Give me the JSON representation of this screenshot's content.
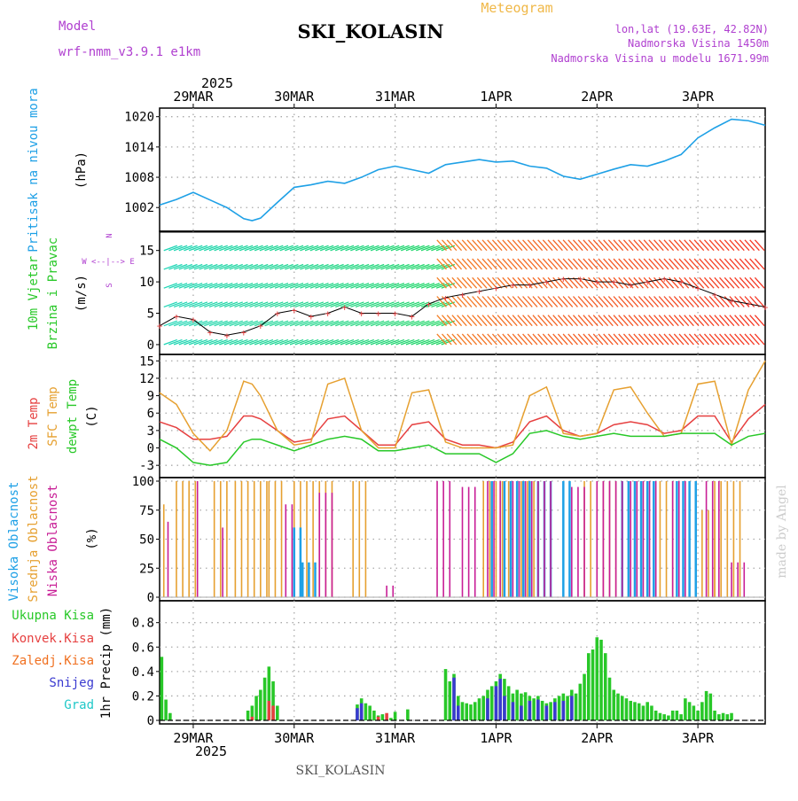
{
  "header": {
    "model_label": "Model",
    "model_name": "wrf-nmm_v3.9.1 e1km",
    "title": "SKI_KOLASIN",
    "meteogram_label": "Meteogram",
    "coords": "lon,lat (19.63E, 42.82N)",
    "elevation": "Nadmorska Visina 1450m",
    "model_elevation": "Nadmorska Visina u modelu 1671.99m",
    "footer_station": "SKI_KOLASIN",
    "credit": "made by Angel"
  },
  "time_axis": {
    "year": "2025",
    "dates": [
      "29MAR",
      "30MAR",
      "31MAR",
      "1APR",
      "2APR",
      "3APR"
    ],
    "hours_start": -8,
    "hours_end": 136
  },
  "colors": {
    "pressure": "#1ea0e6",
    "temp2m": "#e64040",
    "sfc_temp": "#e6a030",
    "dewpt": "#28c828",
    "high_cloud": "#1ea0e6",
    "mid_cloud": "#e6a030",
    "low_cloud": "#c81e96",
    "total_precip": "#28c828",
    "conv_precip": "#e64040",
    "frz_precip": "#f07020",
    "snow": "#3a3ad0",
    "graupel": "#20c8c8"
  },
  "panel_labels": {
    "pressure": [
      "Pritisak na nivou mora",
      "(hPa)"
    ],
    "wind": [
      "10m Vjetar",
      "Brzina i Pravac",
      "(m/s)"
    ],
    "compass": [
      "N",
      "^",
      "|",
      "W <--|--> E",
      "|",
      "v",
      "S"
    ],
    "temp": [
      "2m Temp",
      "SFC Temp",
      "dewpt Temp",
      "(C)"
    ],
    "cloud": [
      "Visoka Oblacnost",
      "Srednja Oblacnost",
      "Niska Oblacnost",
      "(%)"
    ],
    "precip": [
      "Ukupna Kisa",
      "Konvek.Kisa",
      "Zaledj.Kisa",
      "Snijeg",
      "Grad",
      "1hr Precip (mm)"
    ]
  },
  "chart_data": [
    {
      "type": "line",
      "name": "pressure",
      "ylabel": "(hPa)",
      "ylim": [
        998,
        1021
      ],
      "yticks": [
        "1002",
        "1008",
        "1014",
        "1020"
      ],
      "x": [
        -8,
        -4,
        0,
        4,
        8,
        12,
        14,
        16,
        20,
        24,
        28,
        32,
        36,
        40,
        44,
        48,
        52,
        56,
        60,
        64,
        68,
        72,
        76,
        80,
        84,
        88,
        92,
        96,
        100,
        104,
        108,
        112,
        116,
        120,
        124,
        128,
        132,
        136
      ],
      "values": [
        1002.5,
        1003.6,
        1005,
        1003.5,
        1002,
        999.8,
        999.4,
        999.9,
        1003,
        1006,
        1006.5,
        1007.2,
        1006.8,
        1008,
        1009.5,
        1010.2,
        1009.5,
        1008.8,
        1010.5,
        1011,
        1011.5,
        1011,
        1011.2,
        1010.2,
        1009.8,
        1008.2,
        1007.6,
        1008.6,
        1009.6,
        1010.5,
        1010.2,
        1011.2,
        1012.5,
        1015.8,
        1017.8,
        1019.5,
        1019.2,
        1018.3
      ],
      "grid": true
    },
    {
      "type": "scatter",
      "name": "10m wind speed and direction",
      "ylabel": "(m/s)",
      "ylim": [
        -1,
        17.5
      ],
      "yticks": [
        "0",
        "5",
        "10",
        "15"
      ],
      "x": [
        -8,
        -4,
        0,
        4,
        8,
        12,
        16,
        20,
        24,
        28,
        32,
        36,
        40,
        44,
        48,
        52,
        56,
        60,
        64,
        68,
        72,
        76,
        80,
        84,
        88,
        92,
        96,
        100,
        104,
        108,
        112,
        116,
        120,
        124,
        128,
        132,
        136
      ],
      "values": [
        3,
        4.5,
        4,
        2,
        1.5,
        2,
        3,
        5,
        5.5,
        4.5,
        5,
        6,
        5,
        5,
        5,
        4.5,
        6.5,
        7.5,
        8,
        8.5,
        9,
        9.5,
        9.5,
        10,
        10.5,
        10.5,
        10,
        10,
        9.5,
        10,
        10.5,
        10,
        9,
        8,
        7,
        6.5,
        6
      ],
      "grid": true
    },
    {
      "type": "line",
      "name": "temperature",
      "ylabel": "(C)",
      "ylim": [
        -4.5,
        15.5
      ],
      "yticks": [
        "-3",
        "0",
        "3",
        "6",
        "9",
        "12",
        "15"
      ],
      "x": [
        -8,
        -4,
        0,
        4,
        8,
        12,
        14,
        16,
        20,
        24,
        28,
        32,
        36,
        40,
        44,
        48,
        52,
        56,
        60,
        64,
        68,
        72,
        76,
        80,
        84,
        88,
        92,
        96,
        100,
        104,
        108,
        112,
        116,
        120,
        124,
        128,
        132,
        136
      ],
      "series": [
        {
          "name": "2m Temp",
          "values": [
            4.5,
            3.5,
            1.5,
            1.5,
            2,
            5.5,
            5.5,
            5,
            3,
            1,
            1.5,
            5,
            5.5,
            3,
            0.5,
            0.5,
            4,
            4.5,
            1.5,
            0.5,
            0.5,
            0,
            1,
            4.5,
            5.5,
            3,
            2,
            2.5,
            4,
            4.5,
            4,
            2.5,
            3,
            5.5,
            5.5,
            1,
            5,
            7.5
          ]
        },
        {
          "name": "SFC Temp",
          "values": [
            9.5,
            7.5,
            2.5,
            -0.5,
            3,
            11.5,
            11,
            9,
            3,
            0.5,
            1,
            11,
            12,
            3,
            0,
            0,
            9.5,
            10,
            1,
            0,
            0,
            0,
            0.5,
            9,
            10.5,
            2.5,
            2,
            2.5,
            10,
            10.5,
            6,
            2,
            2.5,
            11,
            11.5,
            0.5,
            10,
            15
          ]
        },
        {
          "name": "dewpt Temp",
          "values": [
            1.5,
            0,
            -2.5,
            -3,
            -2.5,
            1,
            1.5,
            1.5,
            0.5,
            -0.5,
            0.5,
            1.5,
            2,
            1.5,
            -0.5,
            -0.5,
            0,
            0.5,
            -1,
            -1,
            -1,
            -2.5,
            -1,
            2.5,
            3,
            2,
            1.5,
            2,
            2.5,
            2,
            2,
            2,
            2.5,
            2.5,
            2.5,
            0.5,
            2,
            2.5
          ]
        }
      ],
      "grid": true
    },
    {
      "type": "bar",
      "name": "cloud cover",
      "ylabel": "(%)",
      "ylim": [
        0,
        100
      ],
      "yticks": [
        "0",
        "25",
        "50",
        "75",
        "100"
      ],
      "bar_interval_hours": 1.5,
      "series": [
        {
          "name": "Visoka Oblacnost",
          "segments": [
            [
              24,
              26,
              60
            ],
            [
              26,
              29,
              30
            ],
            [
              71,
              72,
              100
            ],
            [
              74,
              80,
              100
            ],
            [
              82,
              86,
              100
            ],
            [
              88,
              90,
              100
            ],
            [
              102,
              110,
              100
            ],
            [
              115,
              120,
              100
            ]
          ]
        },
        {
          "name": "Srednja Oblacnost",
          "segments": [
            [
              -7,
              -6,
              80
            ],
            [
              -4,
              1,
              100
            ],
            [
              5,
              8,
              100
            ],
            [
              10,
              18,
              100
            ],
            [
              18,
              22,
              100
            ],
            [
              24,
              34,
              100
            ],
            [
              38,
              42,
              100
            ],
            [
              69,
              76,
              100
            ],
            [
              78,
              82,
              100
            ],
            [
              88,
              90,
              100
            ],
            [
              93,
              101,
              100
            ],
            [
              102,
              108,
              100
            ],
            [
              111,
              115,
              100
            ],
            [
              118,
              124,
              75
            ],
            [
              124,
              130,
              100
            ]
          ]
        },
        {
          "name": "Niska Oblacnost",
          "segments": [
            [
              -6,
              -5,
              65
            ],
            [
              1,
              2,
              100
            ],
            [
              7,
              8,
              60
            ],
            [
              22,
              24,
              80
            ],
            [
              30,
              33,
              90
            ],
            [
              46,
              48,
              10
            ],
            [
              58,
              61,
              100
            ],
            [
              64,
              68,
              95
            ],
            [
              70,
              74,
              100
            ],
            [
              76,
              86,
              100
            ],
            [
              90,
              94,
              95
            ],
            [
              96,
              102,
              100
            ],
            [
              104,
              110,
              100
            ],
            [
              114,
              118,
              100
            ],
            [
              122,
              126,
              100
            ],
            [
              128,
              132,
              30
            ]
          ]
        }
      ],
      "grid": true
    },
    {
      "type": "bar",
      "name": "precipitation",
      "ylabel": "1hr Precip (mm)",
      "ylim": [
        0,
        0.95
      ],
      "yticks": [
        "0",
        "0.2",
        "0.4",
        "0.6",
        "0.8"
      ],
      "bar_width_hours": 0.75,
      "series": [
        {
          "name": "Ukupna Kisa",
          "points": [
            [
              -7.5,
              0.52
            ],
            [
              -6.5,
              0.17
            ],
            [
              -5.5,
              0.06
            ],
            [
              13,
              0.08
            ],
            [
              14,
              0.12
            ],
            [
              15,
              0.2
            ],
            [
              16,
              0.25
            ],
            [
              17,
              0.35
            ],
            [
              18,
              0.44
            ],
            [
              19,
              0.32
            ],
            [
              20,
              0.12
            ],
            [
              39,
              0.13
            ],
            [
              40,
              0.18
            ],
            [
              41,
              0.14
            ],
            [
              42,
              0.12
            ],
            [
              43,
              0.08
            ],
            [
              44,
              0.04
            ],
            [
              45,
              0.05
            ],
            [
              47,
              0.02
            ],
            [
              48,
              0.07
            ],
            [
              51,
              0.09
            ],
            [
              60,
              0.42
            ],
            [
              61,
              0.32
            ],
            [
              62,
              0.38
            ],
            [
              63,
              0.2
            ],
            [
              64,
              0.15
            ],
            [
              65,
              0.14
            ],
            [
              66,
              0.13
            ],
            [
              67,
              0.15
            ],
            [
              68,
              0.18
            ],
            [
              69,
              0.2
            ],
            [
              70,
              0.25
            ],
            [
              71,
              0.28
            ],
            [
              72,
              0.32
            ],
            [
              73,
              0.38
            ],
            [
              74,
              0.34
            ],
            [
              75,
              0.28
            ],
            [
              76,
              0.22
            ],
            [
              77,
              0.25
            ],
            [
              78,
              0.22
            ],
            [
              79,
              0.23
            ],
            [
              80,
              0.2
            ],
            [
              81,
              0.18
            ],
            [
              82,
              0.2
            ],
            [
              83,
              0.16
            ],
            [
              84,
              0.14
            ],
            [
              85,
              0.15
            ],
            [
              86,
              0.18
            ],
            [
              87,
              0.2
            ],
            [
              88,
              0.22
            ],
            [
              89,
              0.2
            ],
            [
              90,
              0.25
            ],
            [
              91,
              0.22
            ],
            [
              92,
              0.3
            ],
            [
              93,
              0.38
            ],
            [
              94,
              0.55
            ],
            [
              95,
              0.58
            ],
            [
              96,
              0.68
            ],
            [
              97,
              0.66
            ],
            [
              98,
              0.55
            ],
            [
              99,
              0.35
            ],
            [
              100,
              0.25
            ],
            [
              101,
              0.22
            ],
            [
              102,
              0.2
            ],
            [
              103,
              0.18
            ],
            [
              104,
              0.16
            ],
            [
              105,
              0.15
            ],
            [
              106,
              0.14
            ],
            [
              107,
              0.12
            ],
            [
              108,
              0.15
            ],
            [
              109,
              0.12
            ],
            [
              110,
              0.08
            ],
            [
              111,
              0.06
            ],
            [
              112,
              0.05
            ],
            [
              113,
              0.04
            ],
            [
              114,
              0.08
            ],
            [
              115,
              0.08
            ],
            [
              116,
              0.05
            ],
            [
              117,
              0.18
            ],
            [
              118,
              0.15
            ],
            [
              119,
              0.12
            ],
            [
              120,
              0.08
            ],
            [
              121,
              0.15
            ],
            [
              122,
              0.24
            ],
            [
              123,
              0.22
            ],
            [
              124,
              0.08
            ],
            [
              125,
              0.05
            ],
            [
              126,
              0.06
            ],
            [
              127,
              0.05
            ],
            [
              128,
              0.06
            ]
          ]
        },
        {
          "name": "Konvek.Kisa",
          "points": [
            [
              14,
              0.03
            ],
            [
              18,
              0.16
            ],
            [
              19,
              0.12
            ],
            [
              40,
              0.04
            ],
            [
              44,
              0.03
            ],
            [
              46,
              0.06
            ]
          ]
        },
        {
          "name": "Snijeg",
          "points": [
            [
              39,
              0.1
            ],
            [
              40,
              0.14
            ],
            [
              62,
              0.35
            ],
            [
              63,
              0.12
            ],
            [
              70,
              0.18
            ],
            [
              72,
              0.28
            ],
            [
              73,
              0.34
            ],
            [
              74,
              0.2
            ],
            [
              76,
              0.15
            ],
            [
              78,
              0.12
            ],
            [
              80,
              0.16
            ],
            [
              82,
              0.17
            ],
            [
              84,
              0.12
            ],
            [
              86,
              0.15
            ],
            [
              88,
              0.16
            ],
            [
              90,
              0.2
            ]
          ]
        }
      ],
      "grid": true
    }
  ]
}
